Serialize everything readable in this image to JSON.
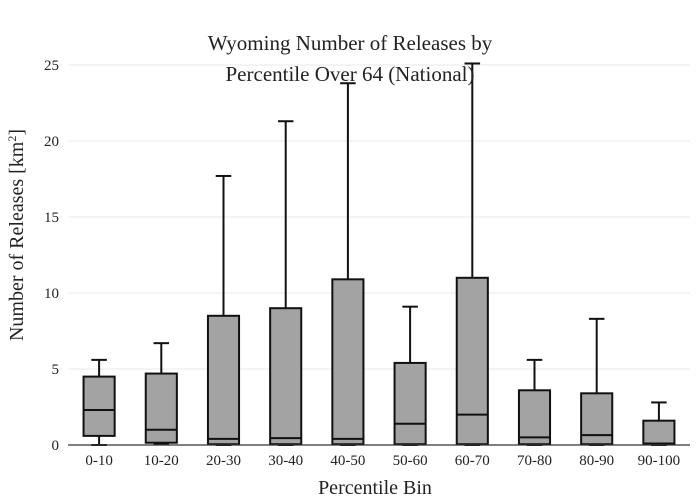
{
  "chart_data": {
    "type": "box",
    "title_lines": [
      "Wyoming Number of Releases by",
      "Percentile Over 64 (National)"
    ],
    "xlabel": "Percentile Bin",
    "ylabel_main": "Number of Releases  [km",
    "ylabel_sup": "2",
    "ylabel_close": "]",
    "ylim": [
      0,
      25
    ],
    "yticks": [
      0,
      5,
      10,
      15,
      20,
      25
    ],
    "grid": true,
    "colors": {
      "box_fill": "#a3a3a3",
      "box_stroke": "#111111",
      "grid": "#e8e8e8",
      "axis": "#333333"
    },
    "categories": [
      "0-10",
      "10-20",
      "20-30",
      "30-40",
      "40-50",
      "50-60",
      "60-70",
      "70-80",
      "80-90",
      "90-100"
    ],
    "boxes": [
      {
        "category": "0-10",
        "min": 0.0,
        "q1": 0.6,
        "median": 2.3,
        "q3": 4.5,
        "max": 5.6
      },
      {
        "category": "10-20",
        "min": 0.1,
        "q1": 0.15,
        "median": 1.0,
        "q3": 4.7,
        "max": 6.7
      },
      {
        "category": "20-30",
        "min": 0.0,
        "q1": 0.05,
        "median": 0.4,
        "q3": 8.5,
        "max": 17.7
      },
      {
        "category": "30-40",
        "min": 0.0,
        "q1": 0.05,
        "median": 0.45,
        "q3": 9.0,
        "max": 21.3
      },
      {
        "category": "40-50",
        "min": 0.0,
        "q1": 0.05,
        "median": 0.4,
        "q3": 10.9,
        "max": 23.8
      },
      {
        "category": "50-60",
        "min": 0.0,
        "q1": 0.05,
        "median": 1.4,
        "q3": 5.4,
        "max": 9.1
      },
      {
        "category": "60-70",
        "min": 0.0,
        "q1": 0.05,
        "median": 2.0,
        "q3": 11.0,
        "max": 25.1
      },
      {
        "category": "70-80",
        "min": 0.0,
        "q1": 0.05,
        "median": 0.5,
        "q3": 3.6,
        "max": 5.6
      },
      {
        "category": "80-90",
        "min": 0.0,
        "q1": 0.05,
        "median": 0.65,
        "q3": 3.4,
        "max": 8.3
      },
      {
        "category": "90-100",
        "min": 0.0,
        "q1": 0.05,
        "median": 0.1,
        "q3": 1.6,
        "max": 2.8
      }
    ]
  }
}
